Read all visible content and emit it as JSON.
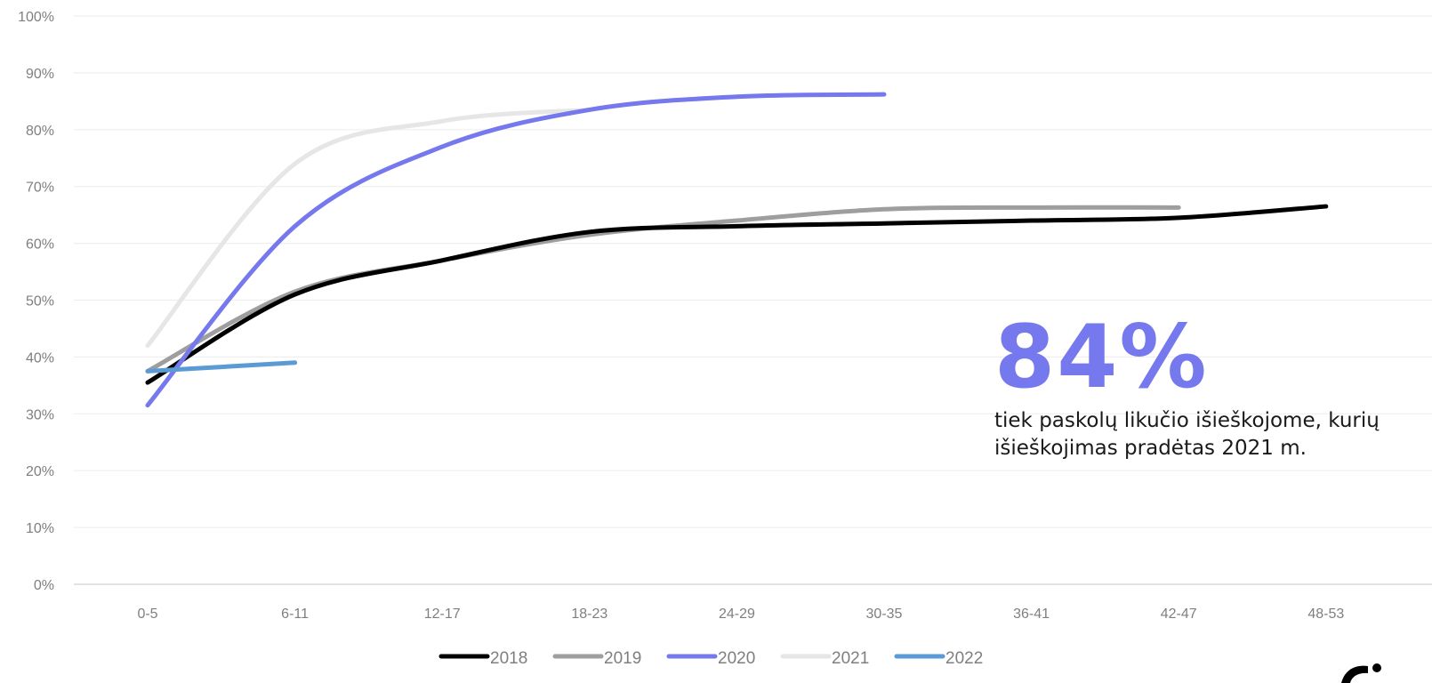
{
  "chart_data": {
    "type": "line",
    "categories": [
      "0-5",
      "6-11",
      "12-17",
      "18-23",
      "24-29",
      "30-35",
      "36-41",
      "42-47",
      "48-53"
    ],
    "y_ticks": [
      "0%",
      "10%",
      "20%",
      "30%",
      "40%",
      "50%",
      "60%",
      "70%",
      "80%",
      "90%",
      "100%"
    ],
    "ylim": [
      0,
      100
    ],
    "grid": true,
    "legend_position": "bottom",
    "series": [
      {
        "name": "2018",
        "color": "#000000",
        "values": [
          35.5,
          51,
          57,
          62,
          63,
          63.5,
          64,
          64.5,
          66.5
        ]
      },
      {
        "name": "2019",
        "color": "#9e9e9e",
        "values": [
          37.5,
          51.5,
          57,
          61.5,
          64,
          66,
          66.3,
          66.3,
          null
        ]
      },
      {
        "name": "2020",
        "color": "#7678ed",
        "values": [
          31.5,
          63,
          77,
          83.5,
          85.8,
          86.2,
          null,
          null,
          null
        ]
      },
      {
        "name": "2021",
        "color": "#e6e6e6",
        "values": [
          42,
          74,
          81.5,
          83.5,
          null,
          null,
          null,
          null,
          null
        ]
      },
      {
        "name": "2022",
        "color": "#5b9bd5",
        "values": [
          37.5,
          39,
          null,
          null,
          null,
          null,
          null,
          null,
          null
        ]
      }
    ]
  },
  "callout": {
    "value": "84%",
    "value_color": "#7678ed",
    "text": "tiek paskolų likučio išieškojome, kurių išieškojimas pradėtas 2021 m."
  },
  "logo": {
    "icon": "company-logo-icon",
    "color": "#000000"
  }
}
